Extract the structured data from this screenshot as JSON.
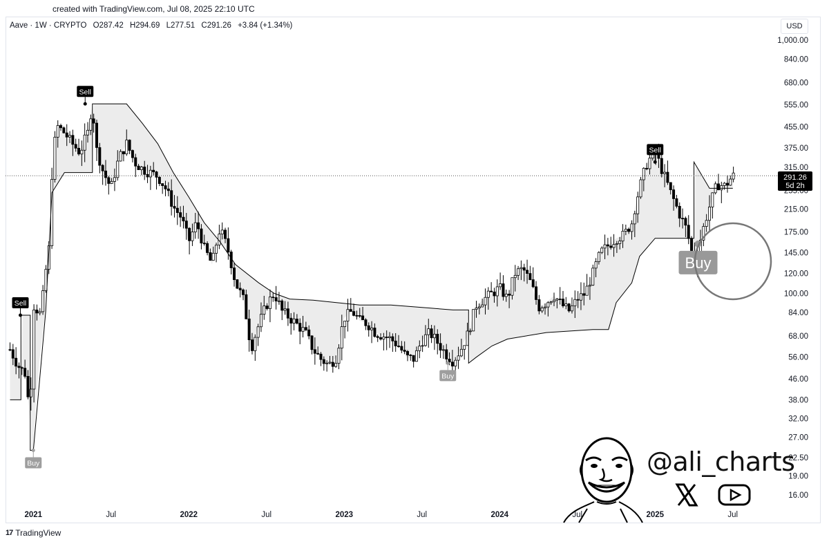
{
  "caption": "created with TradingView.com, Jul 08, 2025 22:10 UTC",
  "header": {
    "symbol": "Aave · 1W · CRYPTO",
    "open": "O287.42",
    "high": "H294.69",
    "low": "L277.51",
    "close": "C291.26",
    "change": "+3.84 (+1.34%)"
  },
  "currency_label": "USD",
  "price_badge": {
    "price": "291.26",
    "countdown": "5d 2h"
  },
  "brand": {
    "logo_mark": "17",
    "name": "TradingView"
  },
  "watermark": {
    "handle": "@ali_charts",
    "icons": [
      "x-logo-icon",
      "youtube-icon"
    ]
  },
  "colors": {
    "candle": "#000000",
    "band_fill": "#e6e6e6",
    "band_line": "#9e9e9e",
    "signal_buy": "#a0a0a0",
    "signal_sell": "#000000"
  },
  "chart_data": {
    "type": "candlestick",
    "title": "",
    "scale": "log",
    "ylim": [
      14,
      1100
    ],
    "y_ticks": [
      "1,000.00",
      "840.00",
      "680.00",
      "555.00",
      "455.00",
      "375.00",
      "315.00",
      "255.00",
      "215.00",
      "175.00",
      "145.00",
      "120.00",
      "100.00",
      "84.00",
      "68.00",
      "56.00",
      "46.00",
      "38.00",
      "32.00",
      "27.00",
      "22.50",
      "19.00",
      "16.00"
    ],
    "x_ticks": [
      "2021",
      "Jul",
      "2022",
      "Jul",
      "2023",
      "Jul",
      "2024",
      "Jul",
      "2025",
      "Jul"
    ],
    "x_ticks_bold": [
      "2021",
      "2022",
      "2023",
      "2024",
      "2025"
    ],
    "last_close": 291.26,
    "annotations": [
      {
        "type": "sell",
        "label": "Sell",
        "date": "2020-12",
        "price": 82
      },
      {
        "type": "buy",
        "label": "Buy",
        "date": "2021-01",
        "price": 24
      },
      {
        "type": "sell",
        "label": "Sell",
        "date": "2021-05",
        "price": 560
      },
      {
        "type": "buy",
        "label": "Buy",
        "date": "2023-09",
        "price": 53
      },
      {
        "type": "sell",
        "label": "Sell",
        "date": "2025-01",
        "price": 330
      },
      {
        "type": "buy",
        "label": "Buy",
        "date": "2025-04",
        "price": 140,
        "highlighted": true
      }
    ],
    "series": [
      {
        "name": "",
        "kind": "price",
        "points": [
          [
            2020.85,
            60
          ],
          [
            2020.9,
            52
          ],
          [
            2020.95,
            48
          ],
          [
            2020.98,
            30
          ],
          [
            2021.0,
            90
          ],
          [
            2021.05,
            82
          ],
          [
            2021.1,
            150
          ],
          [
            2021.12,
            300
          ],
          [
            2021.15,
            460
          ],
          [
            2021.2,
            430
          ],
          [
            2021.25,
            390
          ],
          [
            2021.3,
            360
          ],
          [
            2021.35,
            430
          ],
          [
            2021.38,
            560
          ],
          [
            2021.4,
            380
          ],
          [
            2021.45,
            300
          ],
          [
            2021.5,
            260
          ],
          [
            2021.55,
            340
          ],
          [
            2021.6,
            390
          ],
          [
            2021.65,
            330
          ],
          [
            2021.7,
            310
          ],
          [
            2021.75,
            300
          ],
          [
            2021.8,
            290
          ],
          [
            2021.85,
            260
          ],
          [
            2021.9,
            220
          ],
          [
            2021.95,
            200
          ],
          [
            2022.0,
            160
          ],
          [
            2022.05,
            190
          ],
          [
            2022.1,
            150
          ],
          [
            2022.15,
            130
          ],
          [
            2022.2,
            180
          ],
          [
            2022.25,
            150
          ],
          [
            2022.3,
            110
          ],
          [
            2022.35,
            95
          ],
          [
            2022.4,
            60
          ],
          [
            2022.45,
            75
          ],
          [
            2022.5,
            90
          ],
          [
            2022.55,
            100
          ],
          [
            2022.6,
            85
          ],
          [
            2022.65,
            80
          ],
          [
            2022.7,
            75
          ],
          [
            2022.75,
            70
          ],
          [
            2022.8,
            60
          ],
          [
            2022.85,
            55
          ],
          [
            2022.9,
            52
          ],
          [
            2022.95,
            56
          ],
          [
            2023.0,
            80
          ],
          [
            2023.05,
            85
          ],
          [
            2023.1,
            78
          ],
          [
            2023.15,
            76
          ],
          [
            2023.2,
            70
          ],
          [
            2023.25,
            68
          ],
          [
            2023.3,
            66
          ],
          [
            2023.35,
            62
          ],
          [
            2023.4,
            56
          ],
          [
            2023.45,
            55
          ],
          [
            2023.5,
            65
          ],
          [
            2023.55,
            70
          ],
          [
            2023.6,
            64
          ],
          [
            2023.65,
            58
          ],
          [
            2023.7,
            54
          ],
          [
            2023.75,
            60
          ],
          [
            2023.8,
            70
          ],
          [
            2023.85,
            90
          ],
          [
            2023.9,
            95
          ],
          [
            2023.95,
            100
          ],
          [
            2024.0,
            105
          ],
          [
            2024.05,
            95
          ],
          [
            2024.1,
            120
          ],
          [
            2024.15,
            125
          ],
          [
            2024.2,
            110
          ],
          [
            2024.25,
            88
          ],
          [
            2024.3,
            92
          ],
          [
            2024.35,
            98
          ],
          [
            2024.4,
            90
          ],
          [
            2024.45,
            85
          ],
          [
            2024.5,
            95
          ],
          [
            2024.55,
            100
          ],
          [
            2024.6,
            120
          ],
          [
            2024.65,
            145
          ],
          [
            2024.7,
            155
          ],
          [
            2024.75,
            165
          ],
          [
            2024.8,
            170
          ],
          [
            2024.85,
            190
          ],
          [
            2024.9,
            260
          ],
          [
            2024.95,
            330
          ],
          [
            2025.0,
            360
          ],
          [
            2025.05,
            300
          ],
          [
            2025.1,
            250
          ],
          [
            2025.15,
            210
          ],
          [
            2025.2,
            180
          ],
          [
            2025.25,
            130
          ],
          [
            2025.3,
            170
          ],
          [
            2025.35,
            220
          ],
          [
            2025.4,
            270
          ],
          [
            2025.45,
            265
          ],
          [
            2025.5,
            291
          ]
        ]
      },
      {
        "name": "",
        "kind": "trailing-stop",
        "points": [
          [
            2020.85,
            38
          ],
          [
            2020.92,
            38
          ],
          [
            2020.92,
            82
          ],
          [
            2020.98,
            82
          ],
          [
            2020.98,
            24
          ],
          [
            2021.0,
            24
          ],
          [
            2021.08,
            85
          ],
          [
            2021.12,
            250
          ],
          [
            2021.2,
            300
          ],
          [
            2021.38,
            300
          ],
          [
            2021.38,
            560
          ],
          [
            2021.6,
            560
          ],
          [
            2021.7,
            470
          ],
          [
            2021.8,
            390
          ],
          [
            2021.9,
            300
          ],
          [
            2022.0,
            240
          ],
          [
            2022.1,
            190
          ],
          [
            2022.2,
            160
          ],
          [
            2022.3,
            130
          ],
          [
            2022.45,
            110
          ],
          [
            2022.55,
            100
          ],
          [
            2022.65,
            95
          ],
          [
            2022.8,
            94
          ],
          [
            2022.95,
            92
          ],
          [
            2023.1,
            90
          ],
          [
            2023.3,
            90
          ],
          [
            2023.5,
            88
          ],
          [
            2023.7,
            86
          ],
          [
            2023.8,
            86
          ],
          [
            2023.8,
            53
          ],
          [
            2023.85,
            56
          ],
          [
            2023.95,
            62
          ],
          [
            2024.05,
            66
          ],
          [
            2024.3,
            70
          ],
          [
            2024.6,
            72
          ],
          [
            2024.7,
            72
          ],
          [
            2024.75,
            92
          ],
          [
            2024.85,
            110
          ],
          [
            2024.9,
            140
          ],
          [
            2025.0,
            165
          ],
          [
            2025.2,
            165
          ],
          [
            2025.25,
            165
          ],
          [
            2025.25,
            330
          ],
          [
            2025.35,
            260
          ],
          [
            2025.5,
            260
          ]
        ]
      }
    ]
  }
}
